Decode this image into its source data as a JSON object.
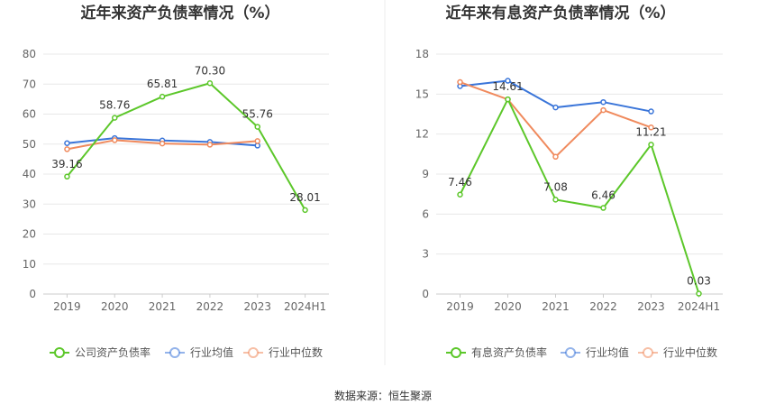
{
  "source_text": "数据来源：恒生聚源",
  "chart_data": [
    {
      "type": "line",
      "title": "近年来资产负债率情况（%）",
      "categories": [
        "2019",
        "2020",
        "2021",
        "2022",
        "2023",
        "2024H1"
      ],
      "ylim": [
        0,
        80
      ],
      "yticks": [
        0,
        10,
        20,
        30,
        40,
        50,
        60,
        70,
        80
      ],
      "grid": true,
      "legend_position": "bottom",
      "series": [
        {
          "name": "公司资产负债率",
          "color": "#5cc72a",
          "values": [
            39.16,
            58.76,
            65.81,
            70.3,
            55.76,
            28.01
          ],
          "labels": [
            "39.16",
            "58.76",
            "65.81",
            "70.30",
            "55.76",
            "28.01"
          ]
        },
        {
          "name": "行业均值",
          "color": "#3a75d9",
          "values": [
            50.3,
            52.0,
            51.2,
            50.7,
            49.5,
            null
          ]
        },
        {
          "name": "行业中位数",
          "color": "#f08a5d",
          "values": [
            48.3,
            51.3,
            50.2,
            49.8,
            51.0,
            null
          ]
        }
      ]
    },
    {
      "type": "line",
      "title": "近年来有息资产负债率情况（%）",
      "categories": [
        "2019",
        "2020",
        "2021",
        "2022",
        "2023",
        "2024H1"
      ],
      "ylim": [
        0,
        18
      ],
      "yticks": [
        0,
        3,
        6,
        9,
        12,
        15,
        18
      ],
      "grid": true,
      "legend_position": "bottom",
      "series": [
        {
          "name": "有息资产负债率",
          "color": "#5cc72a",
          "values": [
            7.46,
            14.61,
            7.08,
            6.46,
            11.21,
            0.03
          ],
          "labels": [
            "7.46",
            "14.61",
            "7.08",
            "6.46",
            "11.21",
            "0.03"
          ]
        },
        {
          "name": "行业均值",
          "color": "#3a75d9",
          "values": [
            15.6,
            16.0,
            14.0,
            14.4,
            13.7,
            null
          ]
        },
        {
          "name": "行业中位数",
          "color": "#f08a5d",
          "values": [
            15.9,
            14.6,
            10.3,
            13.8,
            12.5,
            null
          ]
        }
      ]
    }
  ]
}
